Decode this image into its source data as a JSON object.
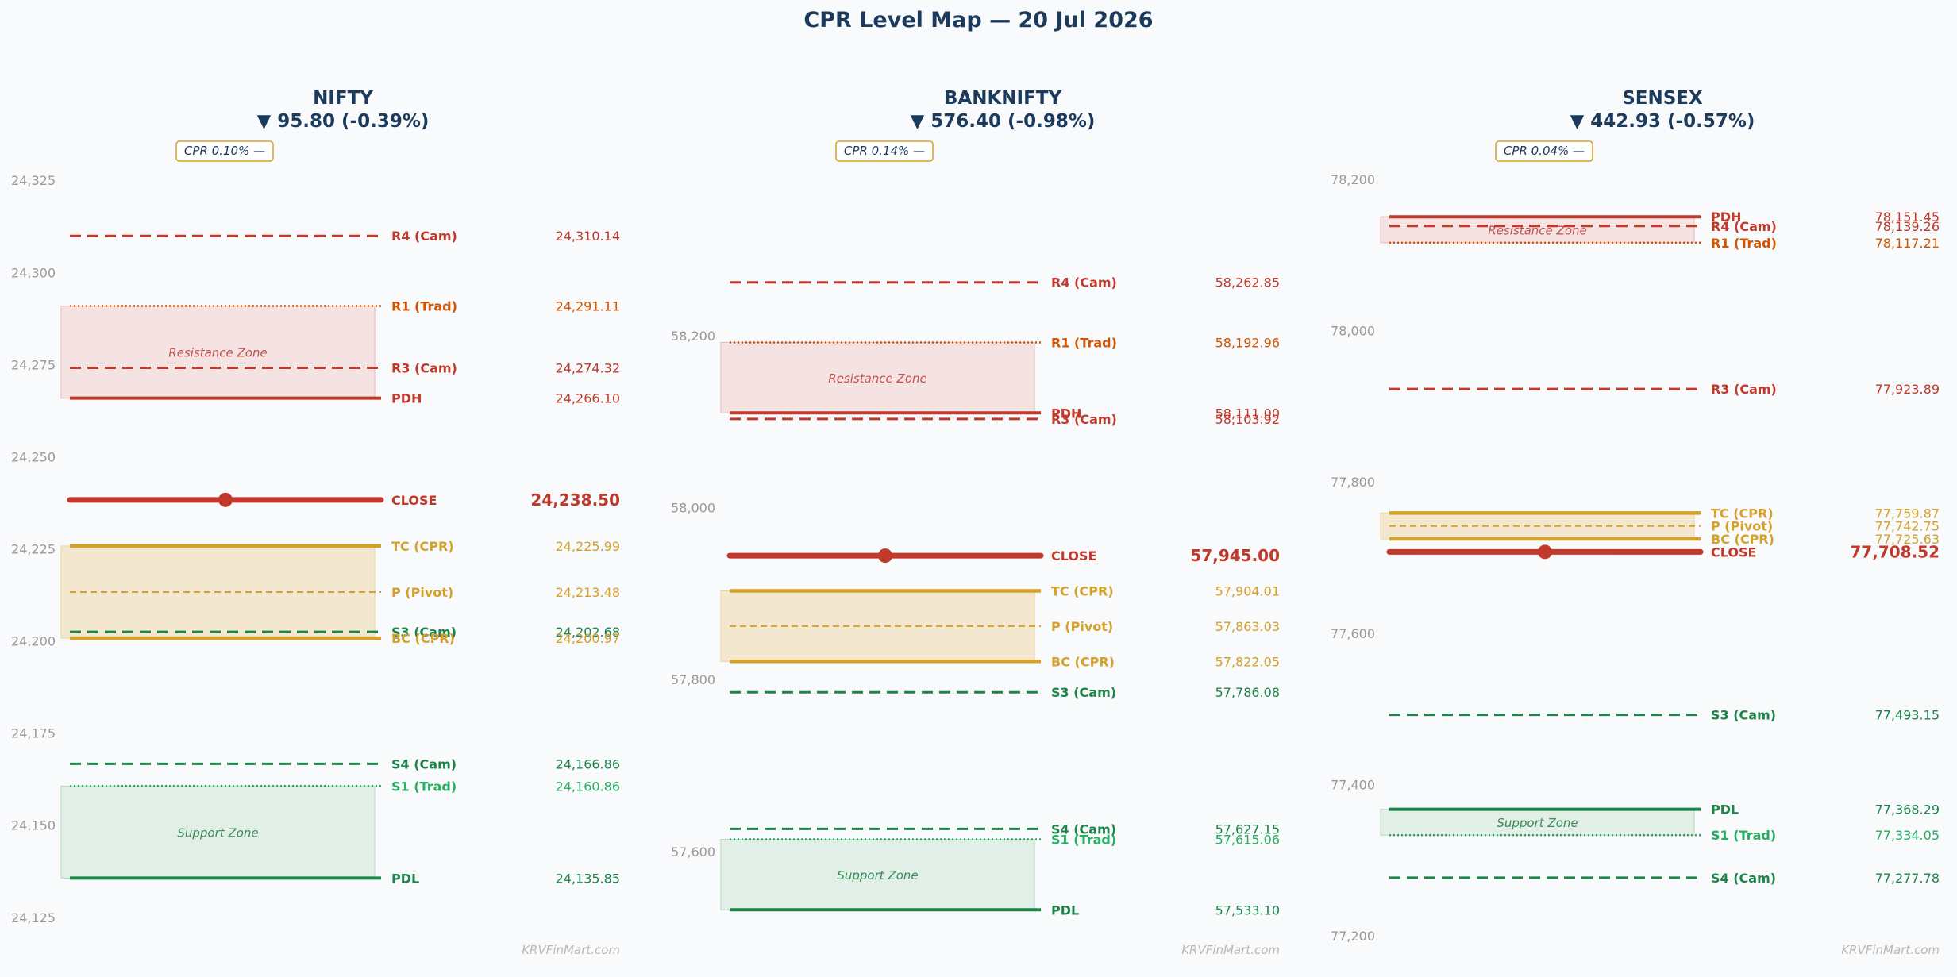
{
  "page": {
    "title": "CPR Level Map — 20 Jul 2026"
  },
  "colors": {
    "resistance": "#c0392b",
    "r1_trad": "#d35400",
    "support": "#1e8449",
    "s1_trad": "#27ae60",
    "cpr": "#d4a12a",
    "close": "#c0392b",
    "title": "#1b3a5c",
    "tick": "#999999",
    "resistance_zone_fill": "#f5e3e3",
    "support_zone_fill": "#e1efe7",
    "cpr_zone_fill": "#f3e8cf"
  },
  "chart_data": [
    {
      "type": "level-map",
      "title": "NIFTY",
      "subtitle": "▼ 95.80 (-0.39%)",
      "cpr_badge": "CPR 0.10% —",
      "watermark": "KRVFinMart.com",
      "ylim": [
        24120,
        24330
      ],
      "yticks": [
        24125,
        24150,
        24175,
        24200,
        24225,
        24250,
        24275,
        24300,
        24325
      ],
      "ytick_labels": [
        "24,125",
        "24,150",
        "24,175",
        "24,200",
        "24,225",
        "24,250",
        "24,275",
        "24,300",
        "24,325"
      ],
      "zones": [
        {
          "type": "resistance",
          "from": 24266.1,
          "to": 24291.11,
          "label": "Resistance Zone"
        },
        {
          "type": "cpr",
          "from": 24200.97,
          "to": 24225.99,
          "label": ""
        },
        {
          "type": "support",
          "from": 24135.85,
          "to": 24160.86,
          "label": "Support Zone"
        }
      ],
      "levels": [
        {
          "name": "R4 (Cam)",
          "value": 24310.14,
          "display": "24,310.14",
          "style": "r_cam"
        },
        {
          "name": "R1 (Trad)",
          "value": 24291.11,
          "display": "24,291.11",
          "style": "r_trad"
        },
        {
          "name": "R3 (Cam)",
          "value": 24274.32,
          "display": "24,274.32",
          "style": "r_cam"
        },
        {
          "name": "PDH",
          "value": 24266.1,
          "display": "24,266.10",
          "style": "pdh"
        },
        {
          "name": "CLOSE",
          "value": 24238.5,
          "display": "24,238.50",
          "style": "close"
        },
        {
          "name": "TC (CPR)",
          "value": 24225.99,
          "display": "24,225.99",
          "style": "cpr_edge"
        },
        {
          "name": "P (Pivot)",
          "value": 24213.48,
          "display": "24,213.48",
          "style": "pivot"
        },
        {
          "name": "S3 (Cam)",
          "value": 24202.68,
          "display": "24,202.68",
          "style": "s_cam"
        },
        {
          "name": "BC (CPR)",
          "value": 24200.97,
          "display": "24,200.97",
          "style": "cpr_edge"
        },
        {
          "name": "S4 (Cam)",
          "value": 24166.86,
          "display": "24,166.86",
          "style": "s_cam"
        },
        {
          "name": "S1 (Trad)",
          "value": 24160.86,
          "display": "24,160.86",
          "style": "s_trad"
        },
        {
          "name": "PDL",
          "value": 24135.85,
          "display": "24,135.85",
          "style": "pdl"
        }
      ]
    },
    {
      "type": "level-map",
      "title": "BANKNIFTY",
      "subtitle": "▼ 576.40 (-0.98%)",
      "cpr_badge": "CPR 0.14% —",
      "watermark": "KRVFinMart.com",
      "ylim": [
        57502,
        58402
      ],
      "yticks": [
        57600,
        57800,
        58000,
        58200
      ],
      "ytick_labels": [
        "57,600",
        "57,800",
        "58,000",
        "58,200"
      ],
      "zones": [
        {
          "type": "resistance",
          "from": 58111.0,
          "to": 58192.96,
          "label": "Resistance Zone"
        },
        {
          "type": "cpr",
          "from": 57822.05,
          "to": 57904.01,
          "label": ""
        },
        {
          "type": "support",
          "from": 57533.1,
          "to": 57615.06,
          "label": "Support Zone"
        }
      ],
      "levels": [
        {
          "name": "R4 (Cam)",
          "value": 58262.85,
          "display": "58,262.85",
          "style": "r_cam"
        },
        {
          "name": "R1 (Trad)",
          "value": 58192.96,
          "display": "58,192.96",
          "style": "r_trad"
        },
        {
          "name": "PDH",
          "value": 58111.0,
          "display": "58,111.00",
          "style": "pdh"
        },
        {
          "name": "R3 (Cam)",
          "value": 58103.92,
          "display": "58,103.92",
          "style": "r_cam"
        },
        {
          "name": "CLOSE",
          "value": 57945.0,
          "display": "57,945.00",
          "style": "close"
        },
        {
          "name": "TC (CPR)",
          "value": 57904.01,
          "display": "57,904.01",
          "style": "cpr_edge"
        },
        {
          "name": "P (Pivot)",
          "value": 57863.03,
          "display": "57,863.03",
          "style": "pivot"
        },
        {
          "name": "BC (CPR)",
          "value": 57822.05,
          "display": "57,822.05",
          "style": "cpr_edge"
        },
        {
          "name": "S3 (Cam)",
          "value": 57786.08,
          "display": "57,786.08",
          "style": "s_cam"
        },
        {
          "name": "S4 (Cam)",
          "value": 57627.15,
          "display": "57,627.15",
          "style": "s_cam"
        },
        {
          "name": "S1 (Trad)",
          "value": 57615.06,
          "display": "57,615.06",
          "style": "s_trad"
        },
        {
          "name": "PDL",
          "value": 57533.1,
          "display": "57,533.10",
          "style": "pdl"
        }
      ]
    },
    {
      "type": "level-map",
      "title": "SENSEX",
      "subtitle": "▼ 442.93 (-0.57%)",
      "cpr_badge": "CPR 0.04% —",
      "watermark": "KRVFinMart.com",
      "ylim": [
        77200,
        78223
      ],
      "yticks": [
        77200,
        77400,
        77600,
        77800,
        78000,
        78200
      ],
      "ytick_labels": [
        "77,200",
        "77,400",
        "77,600",
        "77,800",
        "78,000",
        "78,200"
      ],
      "zones": [
        {
          "type": "resistance",
          "from": 78117.21,
          "to": 78151.45,
          "label": "Resistance Zone"
        },
        {
          "type": "cpr",
          "from": 77725.63,
          "to": 77759.87,
          "label": ""
        },
        {
          "type": "support",
          "from": 77334.05,
          "to": 77368.29,
          "label": "Support Zone"
        }
      ],
      "levels": [
        {
          "name": "PDH",
          "value": 78151.45,
          "display": "78,151.45",
          "style": "pdh"
        },
        {
          "name": "R4 (Cam)",
          "value": 78139.26,
          "display": "78,139.26",
          "style": "r_cam"
        },
        {
          "name": "R1 (Trad)",
          "value": 78117.21,
          "display": "78,117.21",
          "style": "r_trad"
        },
        {
          "name": "R3 (Cam)",
          "value": 77923.89,
          "display": "77,923.89",
          "style": "r_cam"
        },
        {
          "name": "TC (CPR)",
          "value": 77759.87,
          "display": "77,759.87",
          "style": "cpr_edge"
        },
        {
          "name": "P (Pivot)",
          "value": 77742.75,
          "display": "77,742.75",
          "style": "pivot"
        },
        {
          "name": "BC (CPR)",
          "value": 77725.63,
          "display": "77,725.63",
          "style": "cpr_edge"
        },
        {
          "name": "CLOSE",
          "value": 77708.52,
          "display": "77,708.52",
          "style": "close"
        },
        {
          "name": "S3 (Cam)",
          "value": 77493.15,
          "display": "77,493.15",
          "style": "s_cam"
        },
        {
          "name": "PDL",
          "value": 77368.29,
          "display": "77,368.29",
          "style": "pdl"
        },
        {
          "name": "S1 (Trad)",
          "value": 77334.05,
          "display": "77,334.05",
          "style": "s_trad"
        },
        {
          "name": "S4 (Cam)",
          "value": 77277.78,
          "display": "77,277.78",
          "style": "s_cam"
        }
      ]
    }
  ]
}
